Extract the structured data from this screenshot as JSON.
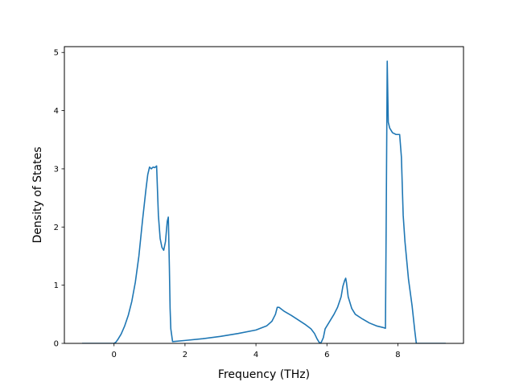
{
  "chart_data": {
    "type": "line",
    "title": "",
    "xlabel": "Frequency (THz)",
    "ylabel": "Density of States",
    "xlim": [
      -1.4,
      9.85
    ],
    "ylim": [
      0,
      5.1
    ],
    "grid": false,
    "series": [
      {
        "color": "#1f77b4",
        "x": [
          -0.9,
          -0.5,
          0.0,
          0.05,
          0.1,
          0.2,
          0.3,
          0.4,
          0.5,
          0.6,
          0.7,
          0.8,
          0.9,
          0.95,
          1.0,
          1.05,
          1.1,
          1.15,
          1.2,
          1.25,
          1.3,
          1.35,
          1.4,
          1.45,
          1.5,
          1.53,
          1.56,
          1.58,
          1.6,
          1.65,
          2.0,
          2.5,
          3.0,
          3.5,
          4.0,
          4.3,
          4.45,
          4.55,
          4.6,
          4.65,
          4.8,
          5.0,
          5.2,
          5.4,
          5.55,
          5.65,
          5.72,
          5.78,
          5.82,
          5.85,
          5.9,
          5.95,
          6.0,
          6.1,
          6.2,
          6.3,
          6.4,
          6.45,
          6.5,
          6.53,
          6.55,
          6.6,
          6.7,
          6.8,
          7.0,
          7.2,
          7.4,
          7.6,
          7.65,
          7.67,
          7.7,
          7.73,
          7.77,
          7.85,
          7.95,
          8.05,
          8.1,
          8.15,
          8.2,
          8.3,
          8.4,
          8.48,
          8.52,
          9.0,
          9.35
        ],
        "y": [
          0,
          0,
          0,
          0.02,
          0.06,
          0.16,
          0.3,
          0.48,
          0.72,
          1.05,
          1.5,
          2.1,
          2.65,
          2.9,
          3.03,
          3.0,
          3.03,
          3.02,
          3.05,
          2.2,
          1.8,
          1.65,
          1.6,
          1.75,
          2.1,
          2.17,
          1.3,
          0.6,
          0.25,
          0.03,
          0.05,
          0.08,
          0.12,
          0.17,
          0.23,
          0.3,
          0.38,
          0.5,
          0.62,
          0.62,
          0.55,
          0.48,
          0.4,
          0.32,
          0.25,
          0.17,
          0.08,
          0.02,
          0.0,
          0.03,
          0.1,
          0.25,
          0.3,
          0.4,
          0.5,
          0.62,
          0.8,
          0.98,
          1.08,
          1.12,
          1.05,
          0.8,
          0.6,
          0.5,
          0.42,
          0.35,
          0.3,
          0.27,
          0.26,
          2.0,
          4.85,
          3.8,
          3.7,
          3.62,
          3.59,
          3.59,
          3.2,
          2.2,
          1.75,
          1.1,
          0.65,
          0.2,
          0.0,
          0.0,
          0.0
        ]
      }
    ],
    "xticks": [
      0,
      2,
      4,
      6,
      8
    ],
    "yticks": [
      0,
      1,
      2,
      3,
      4,
      5
    ]
  }
}
